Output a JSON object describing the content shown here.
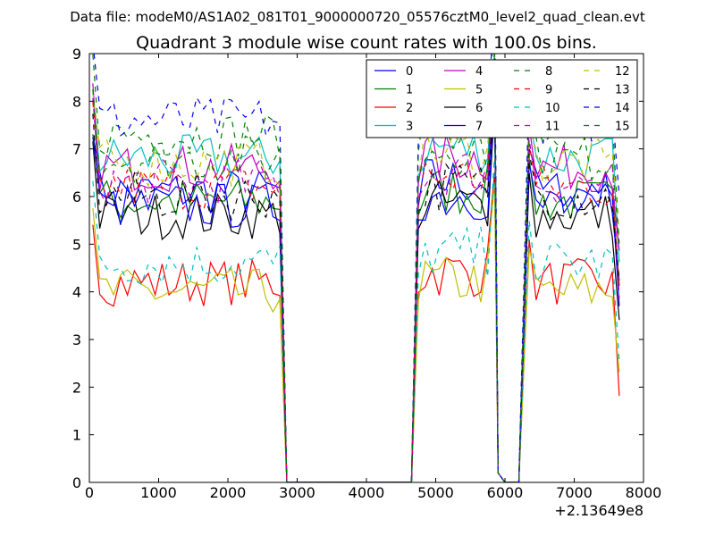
{
  "chart_data": {
    "type": "line",
    "suptitle": "Data file: modeM0/AS1A02_081T01_9000000720_05576cztM0_level2_quad_clean.evt",
    "title": "Quadrant 3 module wise count rates with 100.0s bins.",
    "xlabel": "",
    "ylabel": "",
    "xlim": [
      0,
      8000
    ],
    "ylim": [
      0,
      9
    ],
    "x_offset_label": "+2.13649e8",
    "x_ticks": [
      0,
      1000,
      2000,
      3000,
      4000,
      5000,
      6000,
      7000,
      8000
    ],
    "x_tick_labels": [
      "0",
      "1000",
      "2000",
      "3000",
      "4000",
      "5000",
      "6000",
      "7000",
      "8000"
    ],
    "y_ticks": [
      0,
      1,
      2,
      3,
      4,
      5,
      6,
      7,
      8,
      9
    ],
    "y_tick_labels": [
      "0",
      "1",
      "2",
      "3",
      "4",
      "5",
      "6",
      "7",
      "8",
      "9"
    ],
    "legend_location": "top-right",
    "legend_columns": 4,
    "gti": [
      [
        50,
        2750
      ],
      [
        4750,
        5800
      ],
      [
        6350,
        7650
      ]
    ],
    "zero_segments": [
      [
        2900,
        4700
      ],
      [
        5900,
        6200
      ]
    ],
    "series": [
      {
        "name": "0",
        "color": "#0000ff",
        "dash": "solid",
        "level": 6.1
      },
      {
        "name": "1",
        "color": "#008000",
        "dash": "solid",
        "level": 5.9
      },
      {
        "name": "2",
        "color": "#ff0000",
        "dash": "solid",
        "level": 4.2
      },
      {
        "name": "3",
        "color": "#00bfbf",
        "dash": "solid",
        "level": 6.8
      },
      {
        "name": "4",
        "color": "#bf00bf",
        "dash": "solid",
        "level": 6.6
      },
      {
        "name": "5",
        "color": "#bfbf00",
        "dash": "solid",
        "level": 4.0
      },
      {
        "name": "6",
        "color": "#000000",
        "dash": "solid",
        "level": 5.6
      },
      {
        "name": "7",
        "color": "#0000ff",
        "dash": "solid",
        "level": 5.8
      },
      {
        "name": "8",
        "color": "#008000",
        "dash": "dashed",
        "level": 7.3
      },
      {
        "name": "9",
        "color": "#ff0000",
        "dash": "dashed",
        "level": 6.2
      },
      {
        "name": "10",
        "color": "#00bfbf",
        "dash": "dashed",
        "level": 4.6
      },
      {
        "name": "11",
        "color": "#bf00bf",
        "dash": "dashed",
        "level": 6.3
      },
      {
        "name": "12",
        "color": "#bfbf00",
        "dash": "dashed",
        "level": 6.7
      },
      {
        "name": "13",
        "color": "#000000",
        "dash": "dashed",
        "level": 6.0
      },
      {
        "name": "14",
        "color": "#0000ff",
        "dash": "dashed",
        "level": 7.6
      },
      {
        "name": "15",
        "color": "#008000",
        "dash": "dashed",
        "level": 6.8
      }
    ]
  }
}
